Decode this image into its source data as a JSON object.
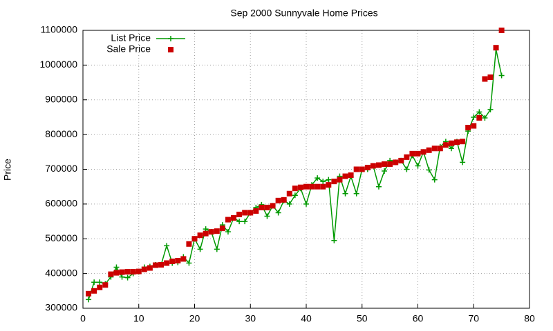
{
  "chart_data": {
    "type": "line",
    "title": "Sep 2000 Sunnyvale Home Prices",
    "y_label": "Price",
    "x": [
      1,
      2,
      3,
      4,
      5,
      6,
      7,
      8,
      9,
      10,
      11,
      12,
      13,
      14,
      15,
      16,
      17,
      18,
      19,
      20,
      21,
      22,
      23,
      24,
      25,
      26,
      27,
      28,
      29,
      30,
      31,
      32,
      33,
      34,
      35,
      36,
      37,
      38,
      39,
      40,
      41,
      42,
      43,
      44,
      45,
      46,
      47,
      48,
      49,
      50,
      51,
      52,
      53,
      54,
      55,
      56,
      57,
      58,
      59,
      60,
      61,
      62,
      63,
      64,
      65,
      66,
      67,
      68,
      69,
      70,
      71,
      72,
      73,
      74,
      75
    ],
    "series": [
      {
        "name": "List Price",
        "color": "#009900",
        "style": "linespoints",
        "marker": "plus",
        "values": [
          325000,
          375000,
          375000,
          370000,
          390000,
          418000,
          390000,
          388000,
          400000,
          405000,
          418000,
          420000,
          425000,
          425000,
          480000,
          430000,
          432000,
          448000,
          430000,
          500000,
          470000,
          528000,
          520000,
          470000,
          540000,
          520000,
          560000,
          550000,
          550000,
          575000,
          590000,
          598000,
          565000,
          595000,
          575000,
          610000,
          600000,
          625000,
          645000,
          600000,
          655000,
          675000,
          665000,
          670000,
          495000,
          680000,
          630000,
          680000,
          630000,
          700000,
          700000,
          710000,
          650000,
          695000,
          725000,
          720000,
          725000,
          700000,
          740000,
          710000,
          750000,
          698000,
          670000,
          765000,
          780000,
          760000,
          780000,
          720000,
          810000,
          850000,
          865000,
          848000,
          872000,
          1045000,
          970000
        ]
      },
      {
        "name": "Sale Price",
        "color": "#cc0000",
        "style": "points",
        "marker": "square",
        "values": [
          342000,
          350000,
          360000,
          367000,
          398000,
          402000,
          404000,
          405000,
          405000,
          406000,
          412000,
          416000,
          424000,
          425000,
          430000,
          435000,
          437000,
          442000,
          485000,
          500000,
          510000,
          515000,
          520000,
          522000,
          530000,
          555000,
          560000,
          570000,
          575000,
          575000,
          580000,
          590000,
          590000,
          595000,
          610000,
          612000,
          630000,
          645000,
          648000,
          650000,
          650000,
          650000,
          650000,
          655000,
          665000,
          670000,
          680000,
          683000,
          700000,
          700000,
          705000,
          710000,
          712000,
          715000,
          715000,
          720000,
          725000,
          735000,
          745000,
          745000,
          750000,
          755000,
          760000,
          760000,
          770000,
          775000,
          778000,
          780000,
          820000,
          825000,
          848000,
          960000,
          965000,
          1050000,
          1100000
        ]
      }
    ],
    "xlim": [
      0,
      80
    ],
    "xticks": [
      0,
      10,
      20,
      30,
      40,
      50,
      60,
      70,
      80
    ],
    "ylim": [
      300000,
      1100000
    ],
    "yticks": [
      300000,
      400000,
      500000,
      600000,
      700000,
      800000,
      900000,
      1000000,
      1100000
    ],
    "grid": true,
    "legend": "top-left"
  }
}
